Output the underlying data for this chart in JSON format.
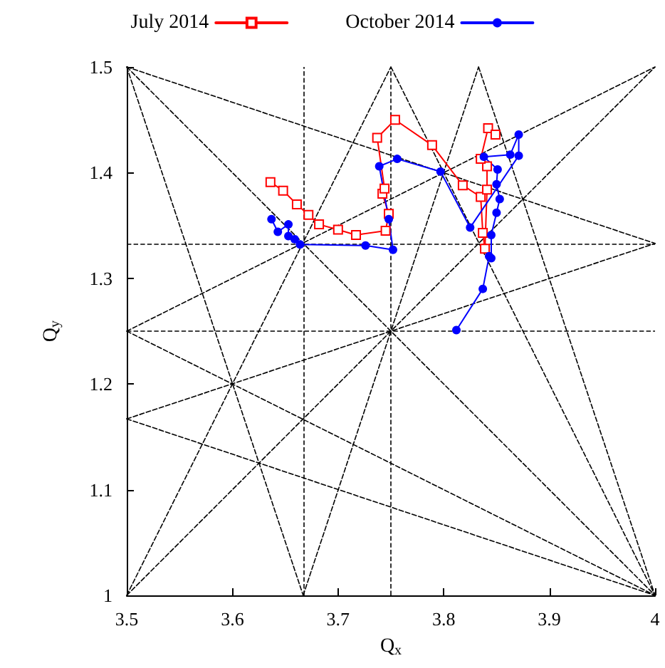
{
  "chart_data": {
    "type": "line",
    "xlabel": "Q$_{x}$",
    "ylabel": "Q$_{y}$",
    "xlim": [
      3.5,
      4
    ],
    "ylim": [
      1,
      1.5
    ],
    "xticks": [
      3.5,
      3.6,
      3.7,
      3.8,
      3.9,
      4
    ],
    "yticks": [
      1,
      1.1,
      1.2,
      1.3,
      1.4,
      1.5
    ],
    "grid": false,
    "legend": "top",
    "ref_lines": [
      {
        "axis": "x",
        "value": 3.667,
        "color": "#000000",
        "line_style": "dashed"
      },
      {
        "axis": "x",
        "value": 3.75,
        "color": "#000000",
        "line_style": "dashed"
      },
      {
        "axis": "y",
        "value": 1.333,
        "color": "#000000",
        "line_style": "dashed"
      },
      {
        "axis": "y",
        "value": 1.25,
        "color": "#000000",
        "line_style": "dashed"
      }
    ],
    "series": [
      {
        "color": "#000000",
        "line_style": "dashed",
        "marker": "none",
        "x": [
          3.5,
          4
        ],
        "values": [
          1.5,
          1
        ]
      },
      {
        "color": "#000000",
        "line_style": "dashed",
        "marker": "none",
        "x": [
          3.5,
          4
        ],
        "values": [
          1,
          1.5
        ]
      },
      {
        "color": "#000000",
        "line_style": "dashed",
        "marker": "none",
        "x": [
          3.75,
          4
        ],
        "values": [
          1.5,
          1
        ]
      },
      {
        "color": "#000000",
        "line_style": "dashed",
        "marker": "none",
        "x": [
          3.5,
          3.75
        ],
        "values": [
          1,
          1.5
        ]
      },
      {
        "color": "#000000",
        "line_style": "dashed",
        "marker": "none",
        "x": [
          3.5,
          4
        ],
        "values": [
          1.25,
          1
        ]
      },
      {
        "color": "#000000",
        "line_style": "dashed",
        "marker": "none",
        "x": [
          3.5,
          4
        ],
        "values": [
          1.25,
          1.5
        ]
      },
      {
        "color": "#000000",
        "line_style": "dashed",
        "marker": "none",
        "x": [
          3.5,
          3.667
        ],
        "values": [
          1.5,
          1
        ]
      },
      {
        "color": "#000000",
        "line_style": "dashed",
        "marker": "none",
        "x": [
          3.833,
          4
        ],
        "values": [
          1.5,
          1
        ]
      },
      {
        "color": "#000000",
        "line_style": "dashed",
        "marker": "none",
        "x": [
          3.667,
          3.833
        ],
        "values": [
          1,
          1.5
        ]
      },
      {
        "color": "#000000",
        "line_style": "dashed",
        "marker": "none",
        "x": [
          3.5,
          4
        ],
        "values": [
          1.5,
          1.333
        ]
      },
      {
        "color": "#000000",
        "line_style": "dashed",
        "marker": "none",
        "x": [
          3.5,
          4
        ],
        "values": [
          1.167,
          1
        ]
      },
      {
        "color": "#000000",
        "line_style": "dashed",
        "marker": "none",
        "x": [
          3.5,
          4
        ],
        "values": [
          1.167,
          1.333
        ]
      },
      {
        "name": "July 2014",
        "color": "#ff0000",
        "line_style": "solid",
        "marker": "square",
        "x": [
          3.636,
          3.648,
          3.661,
          3.672,
          3.682,
          3.7,
          3.717,
          3.745,
          3.748,
          3.742,
          3.744,
          3.737,
          3.754,
          3.789,
          3.818,
          3.835,
          3.837,
          3.839,
          3.841,
          3.841,
          3.835,
          3.842,
          3.849
        ],
        "values": [
          1.391,
          1.383,
          1.37,
          1.36,
          1.351,
          1.346,
          1.341,
          1.345,
          1.361,
          1.38,
          1.385,
          1.433,
          1.45,
          1.426,
          1.388,
          1.377,
          1.343,
          1.328,
          1.384,
          1.406,
          1.413,
          1.442,
          1.436
        ]
      },
      {
        "name": "October 2014",
        "color": "#0000ff",
        "line_style": "solid",
        "marker": "circle",
        "x": [
          3.812,
          3.837,
          3.843,
          3.845,
          3.845,
          3.85,
          3.853,
          3.85,
          3.851,
          3.838,
          3.863,
          3.871,
          3.871,
          3.825,
          3.797,
          3.756,
          3.739,
          3.748,
          3.752,
          3.726,
          3.664,
          3.659,
          3.653,
          3.653,
          3.643,
          3.637
        ],
        "values": [
          1.251,
          1.29,
          1.321,
          1.319,
          1.341,
          1.362,
          1.375,
          1.389,
          1.403,
          1.415,
          1.417,
          1.436,
          1.416,
          1.348,
          1.401,
          1.413,
          1.406,
          1.356,
          1.327,
          1.331,
          1.332,
          1.337,
          1.34,
          1.351,
          1.344,
          1.356
        ]
      }
    ]
  }
}
